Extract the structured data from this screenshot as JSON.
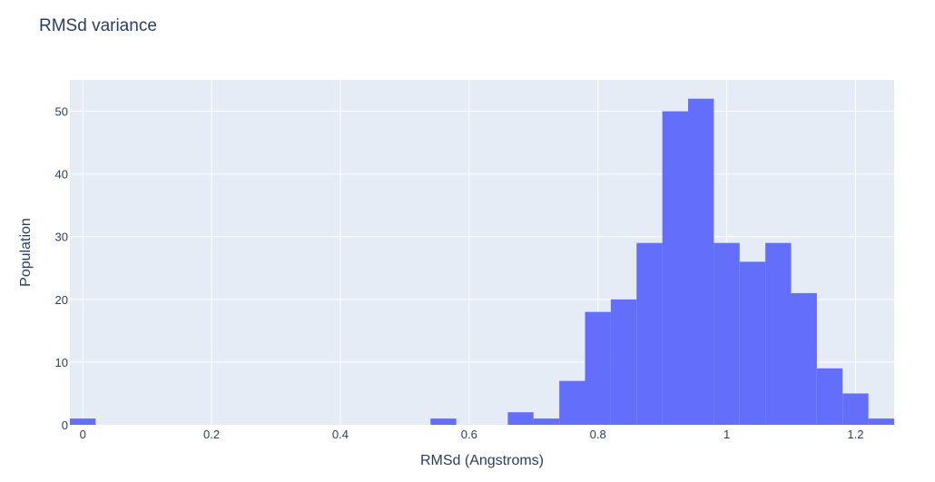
{
  "chart_data": {
    "type": "bar",
    "title": "RMSd variance",
    "xlabel": "RMSd (Angstroms)",
    "ylabel": "Population",
    "xlim": [
      -0.02,
      1.26
    ],
    "ylim": [
      0,
      55
    ],
    "bin_width": 0.04,
    "xticks": [
      0,
      0.2,
      0.4,
      0.6,
      0.8,
      1,
      1.2
    ],
    "xtick_labels": [
      "0",
      "0.2",
      "0.4",
      "0.6",
      "0.8",
      "1",
      "1.2"
    ],
    "yticks": [
      0,
      10,
      20,
      30,
      40,
      50
    ],
    "ytick_labels": [
      "0",
      "10",
      "20",
      "30",
      "40",
      "50"
    ],
    "grid": true,
    "bins": [
      {
        "x0": -0.02,
        "x1": 0.02,
        "count": 1
      },
      {
        "x0": 0.54,
        "x1": 0.58,
        "count": 1
      },
      {
        "x0": 0.66,
        "x1": 0.7,
        "count": 2
      },
      {
        "x0": 0.7,
        "x1": 0.74,
        "count": 1
      },
      {
        "x0": 0.74,
        "x1": 0.78,
        "count": 7
      },
      {
        "x0": 0.78,
        "x1": 0.82,
        "count": 18
      },
      {
        "x0": 0.82,
        "x1": 0.86,
        "count": 20
      },
      {
        "x0": 0.86,
        "x1": 0.9,
        "count": 29
      },
      {
        "x0": 0.9,
        "x1": 0.94,
        "count": 50
      },
      {
        "x0": 0.94,
        "x1": 0.98,
        "count": 52
      },
      {
        "x0": 0.98,
        "x1": 1.02,
        "count": 29
      },
      {
        "x0": 1.02,
        "x1": 1.06,
        "count": 26
      },
      {
        "x0": 1.06,
        "x1": 1.1,
        "count": 29
      },
      {
        "x0": 1.1,
        "x1": 1.14,
        "count": 21
      },
      {
        "x0": 1.14,
        "x1": 1.18,
        "count": 9
      },
      {
        "x0": 1.18,
        "x1": 1.22,
        "count": 5
      },
      {
        "x0": 1.22,
        "x1": 1.26,
        "count": 1
      }
    ],
    "colors": {
      "bar": "#636efa",
      "plot_bg": "#e5ecf6",
      "grid": "#ffffff",
      "text": "#2a3f5f"
    }
  }
}
